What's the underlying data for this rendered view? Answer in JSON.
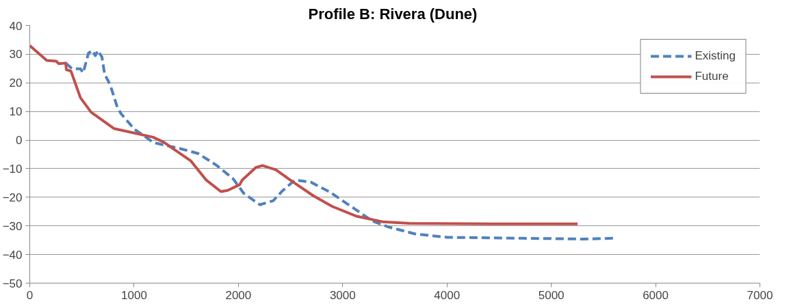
{
  "chart_data": {
    "type": "line",
    "title": "Profile B:  Rivera (Dune)",
    "xlim": [
      0,
      7000
    ],
    "xticks": [
      0,
      1000,
      2000,
      3000,
      4000,
      5000,
      6000,
      7000
    ],
    "ylim": [
      -50,
      40
    ],
    "yticks": [
      -50,
      -40,
      -30,
      -20,
      -10,
      0,
      10,
      20,
      30,
      40
    ],
    "grid": "y",
    "legend": "top right",
    "marker": "none",
    "series": [
      {
        "name": "Existing",
        "color": "#4f81bd",
        "line_style": "dashed",
        "x": [
          344,
          408,
          486,
          512,
          563,
          602,
          628,
          654,
          692,
          718,
          770,
          835,
          873,
          1003,
          1183,
          1280,
          1434,
          1614,
          1794,
          1949,
          2051,
          2206,
          2334,
          2424,
          2540,
          2694,
          2874,
          3080,
          3285,
          3432,
          3694,
          4003,
          4674,
          5319,
          5601
        ],
        "values": [
          26.9,
          24.9,
          24.9,
          23.5,
          30.4,
          31.3,
          29.5,
          31.3,
          29,
          23,
          19.4,
          12,
          9.3,
          3.8,
          -0.8,
          -1.7,
          -2.9,
          -4.7,
          -8.9,
          -13.5,
          -18.6,
          -22.6,
          -21.2,
          -17.7,
          -14,
          -14.7,
          -18.1,
          -23.2,
          -28.3,
          -30.3,
          -32.8,
          -34,
          -34.3,
          -34.6,
          -34.3
        ]
      },
      {
        "name": "Future",
        "color": "#c0504d",
        "line_style": "solid",
        "x": [
          0,
          163,
          253,
          279,
          344,
          351,
          395,
          486,
          589,
          809,
          1183,
          1287,
          1545,
          1692,
          1833,
          1897,
          2013,
          2036,
          2167,
          2231,
          2360,
          2514,
          2720,
          2900,
          3131,
          3388,
          3640,
          4412,
          5252
        ],
        "values": [
          33,
          27.8,
          27.6,
          26.7,
          26.9,
          24.6,
          24.1,
          14.8,
          9.7,
          4,
          1,
          -0.8,
          -7.3,
          -14,
          -18,
          -17.6,
          -15.6,
          -14,
          -9.6,
          -8.9,
          -10.4,
          -14.4,
          -19.5,
          -23.2,
          -26.6,
          -28.6,
          -29.1,
          -29.3,
          -29.3
        ]
      }
    ]
  }
}
